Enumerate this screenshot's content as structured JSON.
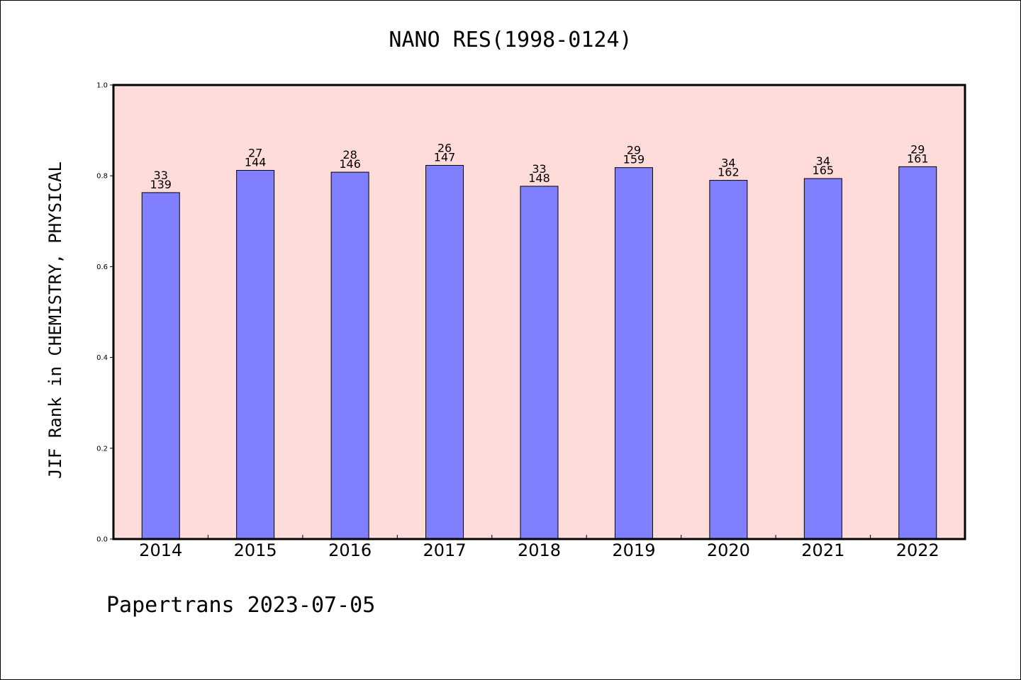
{
  "chart_data": {
    "type": "bar",
    "title": "NANO RES(1998-0124)",
    "xlabel": "",
    "ylabel": "JIF Rank in CHEMISTRY, PHYSICAL",
    "ylim": [
      0,
      1.0
    ],
    "y_ticks": [
      "0.0",
      "0.2",
      "0.4",
      "0.6",
      "0.8",
      "1.0"
    ],
    "categories": [
      "2014",
      "2015",
      "2016",
      "2017",
      "2018",
      "2019",
      "2020",
      "2021",
      "2022"
    ],
    "values": [
      0.763,
      0.812,
      0.808,
      0.823,
      0.777,
      0.818,
      0.79,
      0.794,
      0.82
    ],
    "rank_labels": [
      "33",
      "27",
      "28",
      "26",
      "33",
      "29",
      "34",
      "34",
      "29"
    ],
    "total_labels": [
      "139",
      "144",
      "146",
      "147",
      "148",
      "159",
      "162",
      "165",
      "161"
    ],
    "grid": false,
    "colors": {
      "bar": "#8080ff",
      "plot_background": "#ffdbd9",
      "bar_edge": "#000000"
    }
  },
  "footer": {
    "text": "Papertrans 2023-07-05"
  }
}
